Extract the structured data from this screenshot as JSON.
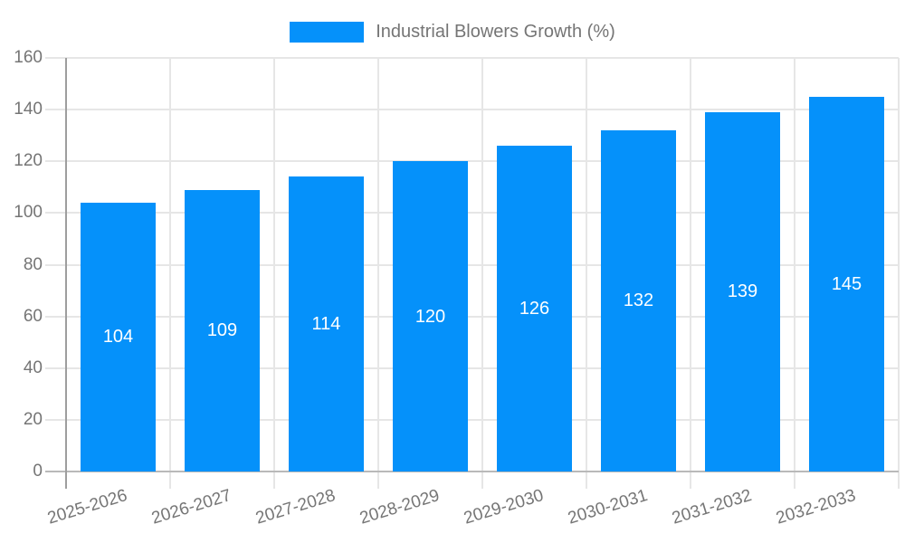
{
  "chart_data": {
    "type": "bar",
    "legend": "Industrial Blowers Growth (%)",
    "legend_position": "top",
    "categories": [
      "2025-2026",
      "2026-2027",
      "2027-2028",
      "2028-2029",
      "2029-2030",
      "2030-2031",
      "2031-2032",
      "2032-2033"
    ],
    "values": [
      104,
      109,
      114,
      120,
      126,
      132,
      139,
      145
    ],
    "xlabel": "",
    "ylabel": "",
    "ylim": [
      0,
      160
    ],
    "yticks": [
      0,
      20,
      40,
      60,
      80,
      100,
      120,
      140,
      160
    ],
    "grid": true,
    "colors": {
      "bar": "#0591fa",
      "value_label": "#ffffff",
      "axis_text": "#757575",
      "gridline": "#e6e6e6",
      "y_axis_line": "#9e9e9e",
      "x_axis_line": "#b9b9b9",
      "background": "#ffffff"
    }
  }
}
